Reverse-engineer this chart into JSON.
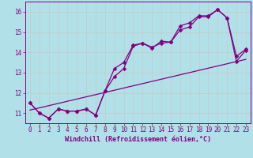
{
  "xlabel": "Windchill (Refroidissement éolien,°C)",
  "bg_color": "#b2e0e8",
  "grid_color": "#c8d8d8",
  "line_color": "#800080",
  "xlim": [
    -0.5,
    23.5
  ],
  "ylim": [
    10.5,
    16.5
  ],
  "xticks": [
    0,
    1,
    2,
    3,
    4,
    5,
    6,
    7,
    8,
    9,
    10,
    11,
    12,
    13,
    14,
    15,
    16,
    17,
    18,
    19,
    20,
    21,
    22,
    23
  ],
  "yticks": [
    11,
    12,
    13,
    14,
    15,
    16
  ],
  "series1_x": [
    0,
    1,
    2,
    3,
    4,
    5,
    6,
    7,
    8,
    9,
    10,
    11,
    12,
    13,
    14,
    15,
    16,
    17,
    18,
    19,
    20,
    21,
    22,
    23
  ],
  "series1_y": [
    11.5,
    11.0,
    10.75,
    11.2,
    11.1,
    11.1,
    11.2,
    10.9,
    12.1,
    12.8,
    13.2,
    14.3,
    14.45,
    14.25,
    14.45,
    14.5,
    15.1,
    15.25,
    15.75,
    15.75,
    16.1,
    15.7,
    13.55,
    14.1
  ],
  "series2_x": [
    0,
    1,
    2,
    3,
    4,
    5,
    6,
    7,
    8,
    9,
    10,
    11,
    12,
    13,
    14,
    15,
    16,
    17,
    18,
    19,
    20,
    21,
    22,
    23
  ],
  "series2_y": [
    11.5,
    11.0,
    10.75,
    11.2,
    11.1,
    11.1,
    11.2,
    10.9,
    12.1,
    13.2,
    13.5,
    14.35,
    14.45,
    14.2,
    14.55,
    14.5,
    15.3,
    15.45,
    15.8,
    15.8,
    16.1,
    15.7,
    13.8,
    14.15
  ],
  "trend_x": [
    0,
    23
  ],
  "trend_y": [
    11.15,
    13.65
  ],
  "marker_size": 2.5,
  "linewidth": 0.9,
  "tick_fontsize": 5.5,
  "label_fontsize": 6.0
}
